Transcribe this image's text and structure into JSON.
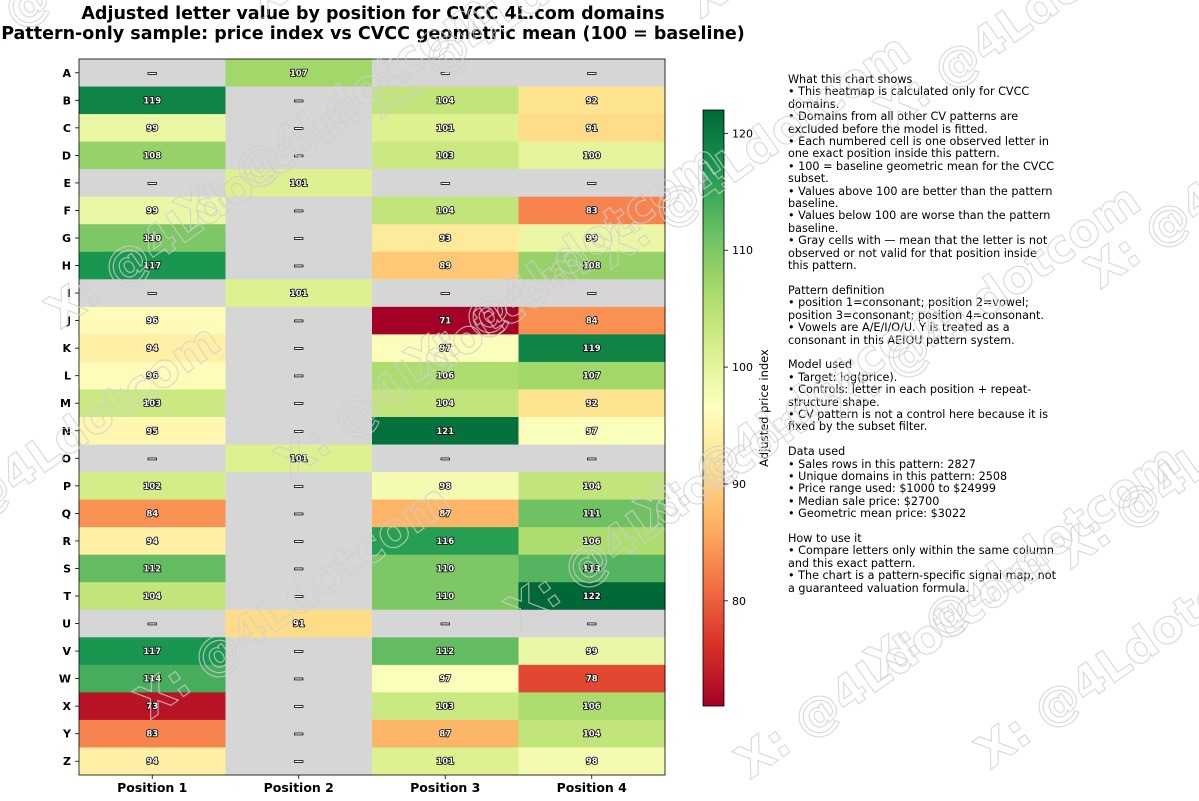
{
  "chart_data": {
    "type": "heatmap",
    "title": "Adjusted letter value by position for CVCC 4L.com domains",
    "subtitle": "Pattern-only sample: price index vs CVCC geometric mean (100 = baseline)",
    "columns": [
      "Position 1",
      "Position 2",
      "Position 3",
      "Position 4"
    ],
    "rows": [
      "A",
      "B",
      "C",
      "D",
      "E",
      "F",
      "G",
      "H",
      "I",
      "J",
      "K",
      "L",
      "M",
      "N",
      "O",
      "P",
      "Q",
      "R",
      "S",
      "T",
      "U",
      "V",
      "W",
      "X",
      "Y",
      "Z"
    ],
    "values": [
      [
        null,
        107,
        null,
        null
      ],
      [
        119,
        null,
        104,
        92
      ],
      [
        99,
        null,
        101,
        91
      ],
      [
        108,
        null,
        103,
        100
      ],
      [
        null,
        101,
        null,
        null
      ],
      [
        99,
        null,
        104,
        83
      ],
      [
        110,
        null,
        93,
        99
      ],
      [
        117,
        null,
        89,
        108
      ],
      [
        null,
        101,
        null,
        null
      ],
      [
        96,
        null,
        71,
        84
      ],
      [
        94,
        null,
        97,
        119
      ],
      [
        96,
        null,
        106,
        107
      ],
      [
        103,
        null,
        104,
        92
      ],
      [
        95,
        null,
        121,
        97
      ],
      [
        null,
        101,
        null,
        null
      ],
      [
        102,
        null,
        98,
        104
      ],
      [
        84,
        null,
        87,
        111
      ],
      [
        94,
        null,
        116,
        106
      ],
      [
        112,
        null,
        110,
        113
      ],
      [
        104,
        null,
        110,
        122
      ],
      [
        null,
        91,
        null,
        null
      ],
      [
        117,
        null,
        112,
        99
      ],
      [
        114,
        null,
        97,
        78
      ],
      [
        73,
        null,
        103,
        106
      ],
      [
        83,
        null,
        87,
        104
      ],
      [
        94,
        null,
        101,
        98
      ]
    ],
    "missing_label": "—",
    "missing_color": "#d6d6d6",
    "colormap": "RdYlGn",
    "vmin": 71,
    "vmax": 122,
    "colorbar": {
      "label": "Adjusted price index",
      "ticks": [
        80,
        90,
        100,
        110,
        120
      ]
    }
  },
  "notes": [
    {
      "heading": "What this chart shows",
      "lines": [
        "• This heatmap is calculated only for CVCC domains.",
        "• Domains from all other CV patterns are excluded before the model is fitted.",
        "• Each numbered cell is one observed letter in one exact position inside this pattern.",
        "• 100 = baseline geometric mean for the CVCC subset.",
        "• Values above 100 are better than the pattern baseline.",
        "• Values below 100 are worse than the pattern baseline.",
        "• Gray cells with — mean that the letter is not observed or not valid for that position inside this pattern."
      ]
    },
    {
      "heading": "Pattern definition",
      "lines": [
        "• position 1=consonant; position 2=vowel; position 3=consonant; position 4=consonant.",
        "• Vowels are A/E/I/O/U. Y is treated as a consonant in this AEIOU pattern system."
      ]
    },
    {
      "heading": "Model used",
      "lines": [
        "• Target: log(price).",
        "• Controls: letter in each position + repeat-structure shape.",
        "• CV pattern is not a control here because it is fixed by the subset filter."
      ]
    },
    {
      "heading": "Data used",
      "lines": [
        "• Sales rows in this pattern: 2827",
        "• Unique domains in this pattern: 2508",
        "• Price range used: $1000 to $24999",
        "• Median sale price: $2700",
        "• Geometric mean price: $3022"
      ]
    },
    {
      "heading": "How to use it",
      "lines": [
        "• Compare letters only within the same column and this exact pattern.",
        "• The chart is a pattern-specific signal map, not a guaranteed valuation formula."
      ]
    }
  ],
  "watermark": "X: @4Ldotcom"
}
